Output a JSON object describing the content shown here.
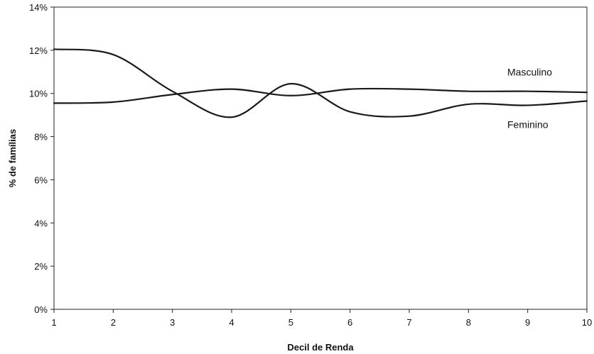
{
  "chart_data": {
    "type": "line",
    "title": "",
    "xlabel": "Decil de Renda",
    "ylabel": "% de famílias",
    "categories": [
      "1",
      "2",
      "3",
      "4",
      "5",
      "6",
      "7",
      "8",
      "9",
      "10"
    ],
    "x": [
      1,
      2,
      3,
      4,
      5,
      6,
      7,
      8,
      9,
      10
    ],
    "yticks": [
      "0%",
      "2%",
      "4%",
      "6%",
      "8%",
      "10%",
      "12%",
      "14%"
    ],
    "ylim": [
      0,
      14
    ],
    "xlim": [
      1,
      10
    ],
    "grid": false,
    "series": [
      {
        "name": "Masculino",
        "values": [
          9.55,
          9.6,
          9.95,
          10.2,
          9.9,
          10.2,
          10.2,
          10.1,
          10.1,
          10.05
        ]
      },
      {
        "name": "Feminino",
        "values": [
          12.05,
          11.8,
          10.1,
          8.9,
          10.45,
          9.15,
          8.95,
          9.5,
          9.45,
          9.65
        ]
      }
    ],
    "line_color": "#1a1a1a"
  }
}
